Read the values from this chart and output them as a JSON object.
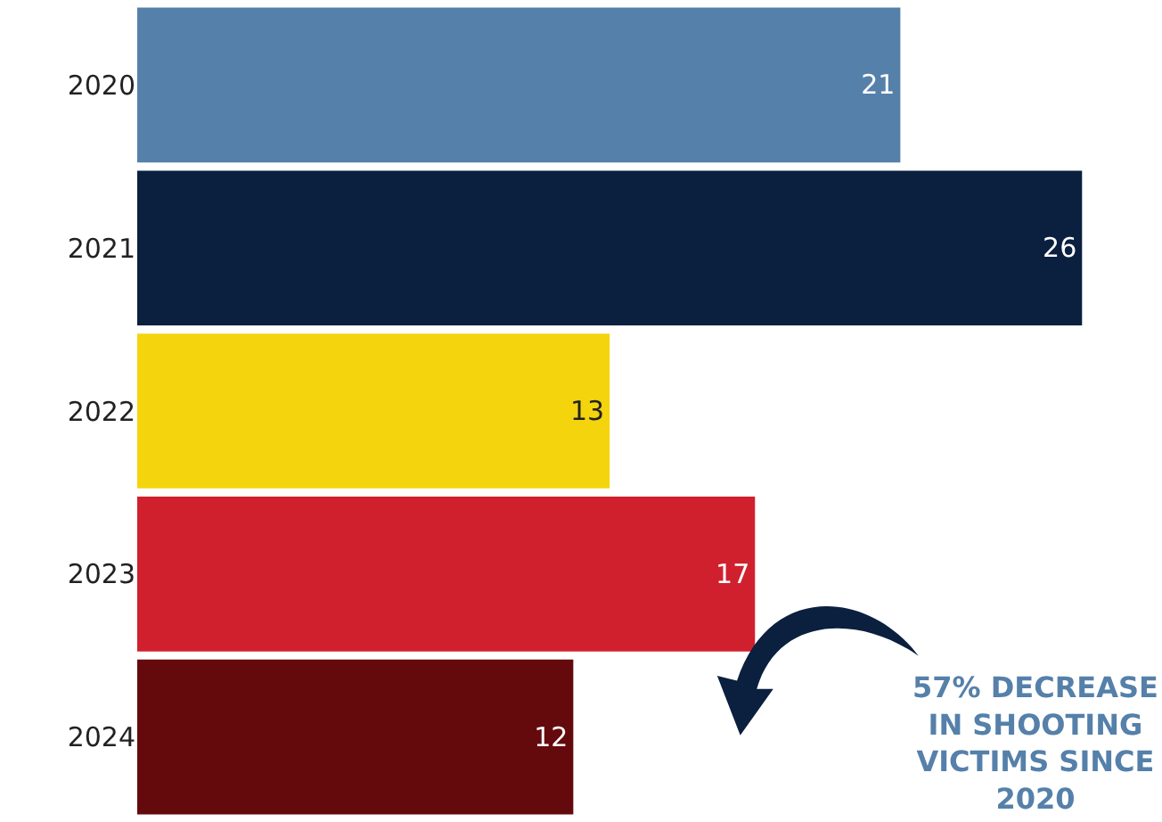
{
  "chart_data": {
    "type": "bar",
    "orientation": "horizontal",
    "categories": [
      "2020",
      "2021",
      "2022",
      "2023",
      "2024"
    ],
    "values": [
      21,
      26,
      13,
      17,
      12
    ],
    "colors": [
      "#5580aa",
      "#0b1f3f",
      "#f4d40c",
      "#d0202e",
      "#650a0c"
    ],
    "xlim": [
      0,
      28.2
    ],
    "data_labels": true,
    "tick_labels": "y",
    "annotations": [
      "57% DECREASE IN SHOOTING VICTIMS SINCE 2020"
    ]
  }
}
